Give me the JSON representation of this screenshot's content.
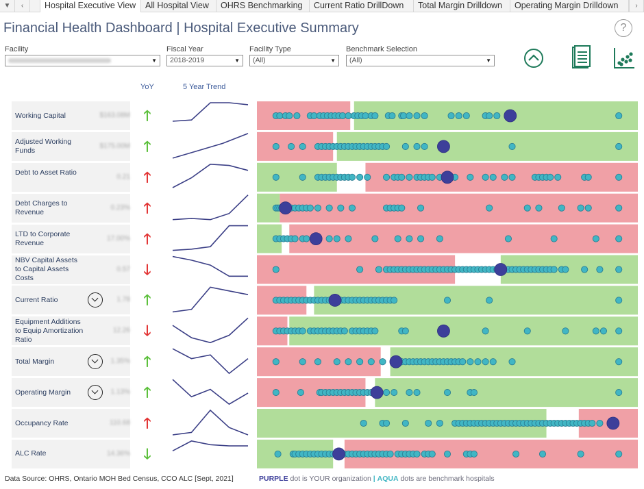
{
  "tabs": {
    "items": [
      {
        "label": "Hospital Executive View",
        "active": true
      },
      {
        "label": "All Hospital View",
        "active": false
      },
      {
        "label": "OHRS Benchmarking",
        "active": false
      },
      {
        "label": "Current Ratio DrillDown",
        "active": false
      },
      {
        "label": "Total Margin Drilldown",
        "active": false
      },
      {
        "label": "Operating Margin Drilldown",
        "active": false
      }
    ]
  },
  "header": {
    "title": "Financial Health Dashboard |  Hospital Executive Summary",
    "help": "?"
  },
  "filters": {
    "facility": {
      "label": "Facility",
      "value": ""
    },
    "fiscal_year": {
      "label": "Fiscal Year",
      "value": "2018-2019"
    },
    "facility_type": {
      "label": "Facility Type",
      "value": "(All)"
    },
    "benchmark": {
      "label": "Benchmark Selection",
      "value": "(All)"
    }
  },
  "icons": {
    "collapse": "chevron-up-circle-icon",
    "report": "report-document-icon",
    "scatter": "scatter-chart-icon"
  },
  "columns": {
    "yoy": "YoY",
    "trend": "5 Year Trend"
  },
  "colors": {
    "red_zone": "#f0a0a6",
    "green_zone": "#b1dd9a",
    "aqua": "#41b6c4",
    "purple": "#3d3f9a",
    "arrow_up": "#5bbf3a",
    "arrow_down_red": "#e23434",
    "trend_line": "#3b3f86"
  },
  "metrics": [
    {
      "label": "Working Capital",
      "value": "$163.08M",
      "yoy": "up",
      "yoy_color": "green",
      "expand": false,
      "trend": [
        0.25,
        0.3,
        1.0,
        1.0,
        0.92
      ],
      "zones": [
        [
          "red",
          0.0,
          0.245
        ],
        [
          "green",
          0.255,
          1.0
        ]
      ],
      "dots": [
        0.05,
        0.06,
        0.075,
        0.085,
        0.105,
        0.14,
        0.15,
        0.165,
        0.175,
        0.185,
        0.195,
        0.205,
        0.215,
        0.225,
        0.24,
        0.255,
        0.265,
        0.275,
        0.285,
        0.3,
        0.31,
        0.345,
        0.355,
        0.38,
        0.385,
        0.4,
        0.42,
        0.44,
        0.51,
        0.53,
        0.55,
        0.6,
        0.61,
        0.63,
        0.95
      ],
      "you": 0.665
    },
    {
      "label": "Adjusted Working Funds",
      "value": "$175.00M",
      "yoy": "up",
      "yoy_color": "green",
      "expand": false,
      "trend": [
        0.0,
        0.3,
        0.6,
        1.0
      ],
      "zones": [
        [
          "red",
          0.0,
          0.2
        ],
        [
          "green",
          0.21,
          1.0
        ]
      ],
      "dots": [
        0.05,
        0.09,
        0.12,
        0.16,
        0.17,
        0.18,
        0.19,
        0.2,
        0.21,
        0.22,
        0.23,
        0.24,
        0.25,
        0.26,
        0.27,
        0.28,
        0.29,
        0.3,
        0.31,
        0.32,
        0.33,
        0.34,
        0.39,
        0.42,
        0.44,
        0.67,
        0.95
      ],
      "you": 0.49
    },
    {
      "label": "Debt to Asset Ratio",
      "value": "0.21",
      "yoy": "up",
      "yoy_color": "red",
      "expand": false,
      "trend": [
        0.05,
        0.45,
        1.0,
        0.95,
        0.75
      ],
      "zones": [
        [
          "green",
          0.0,
          0.21
        ],
        [
          "red",
          0.285,
          1.0
        ]
      ],
      "dots": [
        0.05,
        0.12,
        0.16,
        0.17,
        0.18,
        0.19,
        0.2,
        0.21,
        0.22,
        0.23,
        0.24,
        0.25,
        0.27,
        0.29,
        0.34,
        0.36,
        0.37,
        0.38,
        0.4,
        0.42,
        0.43,
        0.44,
        0.45,
        0.46,
        0.48,
        0.5,
        0.52,
        0.56,
        0.6,
        0.62,
        0.65,
        0.67,
        0.73,
        0.74,
        0.75,
        0.76,
        0.77,
        0.79,
        0.86,
        0.87,
        0.95
      ],
      "you": 0.5
    },
    {
      "label": "Debt Charges to Revenue",
      "value": "0.23%",
      "yoy": "up",
      "yoy_color": "red",
      "expand": false,
      "trend": [
        0.0,
        0.05,
        0.0,
        0.25,
        1.0
      ],
      "zones": [
        [
          "green",
          0.0,
          0.06
        ],
        [
          "red",
          0.06,
          1.0
        ]
      ],
      "dots": [
        0.05,
        0.055,
        0.06,
        0.065,
        0.07,
        0.08,
        0.09,
        0.1,
        0.11,
        0.12,
        0.13,
        0.14,
        0.16,
        0.19,
        0.22,
        0.25,
        0.34,
        0.35,
        0.36,
        0.37,
        0.38,
        0.43,
        0.61,
        0.71,
        0.74,
        0.8,
        0.85,
        0.87,
        0.95
      ],
      "you": 0.075
    },
    {
      "label": "LTD to Corporate Revenue",
      "value": "17.00%",
      "yoy": "up",
      "yoy_color": "red",
      "expand": false,
      "trend": [
        0.0,
        0.05,
        0.15,
        1.0,
        1.0
      ],
      "zones": [
        [
          "green",
          0.0,
          0.065
        ],
        [
          "red",
          0.085,
          1.0
        ]
      ],
      "dots": [
        0.05,
        0.06,
        0.07,
        0.08,
        0.09,
        0.1,
        0.12,
        0.13,
        0.15,
        0.19,
        0.21,
        0.24,
        0.31,
        0.37,
        0.4,
        0.43,
        0.48,
        0.66,
        0.78,
        0.89,
        0.95
      ],
      "you": 0.155
    },
    {
      "label": "NBV Capital Assets to Capital Assets Costs",
      "value": "0.57",
      "yoy": "down",
      "yoy_color": "red",
      "expand": false,
      "trend": [
        1.0,
        0.85,
        0.65,
        0.2,
        0.2
      ],
      "zones": [
        [
          "red",
          0.0,
          0.52
        ],
        [
          "green",
          0.64,
          1.0
        ]
      ],
      "dots": [
        0.05,
        0.27,
        0.32,
        0.34,
        0.35,
        0.36,
        0.37,
        0.38,
        0.39,
        0.4,
        0.41,
        0.42,
        0.43,
        0.44,
        0.45,
        0.46,
        0.47,
        0.48,
        0.49,
        0.5,
        0.51,
        0.52,
        0.53,
        0.54,
        0.55,
        0.56,
        0.57,
        0.58,
        0.59,
        0.6,
        0.61,
        0.62,
        0.63,
        0.66,
        0.67,
        0.68,
        0.69,
        0.7,
        0.71,
        0.72,
        0.73,
        0.74,
        0.75,
        0.76,
        0.77,
        0.78,
        0.8,
        0.81,
        0.86,
        0.9,
        0.95
      ],
      "you": 0.64
    },
    {
      "label": "Current Ratio",
      "value": "1.78",
      "yoy": "up",
      "yoy_color": "green",
      "expand": true,
      "trend": [
        0.0,
        0.1,
        1.0,
        0.85,
        0.7
      ],
      "zones": [
        [
          "red",
          0.0,
          0.13
        ],
        [
          "green",
          0.15,
          1.0
        ]
      ],
      "dots": [
        0.05,
        0.06,
        0.07,
        0.08,
        0.09,
        0.1,
        0.11,
        0.12,
        0.13,
        0.14,
        0.15,
        0.16,
        0.17,
        0.18,
        0.19,
        0.21,
        0.22,
        0.23,
        0.24,
        0.25,
        0.26,
        0.27,
        0.28,
        0.29,
        0.3,
        0.31,
        0.32,
        0.33,
        0.34,
        0.35,
        0.36,
        0.5,
        0.61,
        0.95
      ],
      "you": 0.205
    },
    {
      "label": "Equipment Additions to Equip Amortization Ratio",
      "value": "12.26",
      "yoy": "down",
      "yoy_color": "red",
      "expand": false,
      "trend": [
        0.7,
        0.2,
        0.0,
        0.3,
        1.0
      ],
      "zones": [
        [
          "red",
          0.0,
          0.08
        ],
        [
          "green",
          0.085,
          1.0
        ]
      ],
      "dots": [
        0.05,
        0.06,
        0.07,
        0.08,
        0.09,
        0.1,
        0.11,
        0.12,
        0.14,
        0.15,
        0.16,
        0.17,
        0.18,
        0.19,
        0.2,
        0.21,
        0.22,
        0.23,
        0.25,
        0.26,
        0.27,
        0.28,
        0.29,
        0.3,
        0.31,
        0.38,
        0.39,
        0.6,
        0.71,
        0.81,
        0.89,
        0.91,
        0.95
      ],
      "you": 0.49
    },
    {
      "label": "Total Margin",
      "value": "1.35%",
      "yoy": "up",
      "yoy_color": "green",
      "expand": true,
      "trend": [
        1.0,
        0.6,
        0.75,
        0.0,
        0.6
      ],
      "zones": [
        [
          "red",
          0.0,
          0.325
        ],
        [
          "green",
          0.35,
          1.0
        ]
      ],
      "dots": [
        0.05,
        0.12,
        0.16,
        0.21,
        0.24,
        0.27,
        0.3,
        0.33,
        0.36,
        0.37,
        0.38,
        0.39,
        0.4,
        0.41,
        0.42,
        0.43,
        0.44,
        0.45,
        0.46,
        0.47,
        0.48,
        0.49,
        0.5,
        0.51,
        0.52,
        0.53,
        0.54,
        0.56,
        0.58,
        0.6,
        0.62,
        0.67,
        0.95
      ],
      "you": 0.365
    },
    {
      "label": "Operating Margin",
      "value": "1.13%",
      "yoy": "up",
      "yoy_color": "green",
      "expand": true,
      "trend": [
        1.0,
        0.3,
        0.6,
        0.0,
        0.45
      ],
      "zones": [
        [
          "red",
          0.0,
          0.285
        ],
        [
          "green",
          0.31,
          1.0
        ]
      ],
      "dots": [
        0.05,
        0.115,
        0.165,
        0.17,
        0.18,
        0.19,
        0.2,
        0.21,
        0.22,
        0.23,
        0.24,
        0.25,
        0.26,
        0.27,
        0.28,
        0.29,
        0.3,
        0.31,
        0.32,
        0.34,
        0.36,
        0.4,
        0.42,
        0.5,
        0.56,
        0.57,
        0.95
      ],
      "you": 0.315
    },
    {
      "label": "Occupancy Rate",
      "value": "110.68",
      "yoy": "up",
      "yoy_color": "red",
      "expand": false,
      "trend": [
        0.0,
        0.1,
        1.0,
        0.3,
        0.0
      ],
      "zones": [
        [
          "green",
          0.0,
          0.76
        ],
        [
          "red",
          0.845,
          1.0
        ]
      ],
      "dots": [
        0.28,
        0.33,
        0.34,
        0.39,
        0.45,
        0.48,
        0.52,
        0.53,
        0.54,
        0.55,
        0.56,
        0.57,
        0.58,
        0.59,
        0.6,
        0.61,
        0.62,
        0.63,
        0.64,
        0.65,
        0.66,
        0.67,
        0.68,
        0.69,
        0.7,
        0.71,
        0.72,
        0.73,
        0.74,
        0.75,
        0.76,
        0.77,
        0.78,
        0.79,
        0.8,
        0.81,
        0.82,
        0.83,
        0.84,
        0.85,
        0.86,
        0.87,
        0.88,
        0.9
      ],
      "you": 0.935
    },
    {
      "label": "ALC Rate",
      "value": "14.36%",
      "yoy": "down",
      "yoy_color": "green",
      "expand": false,
      "trend": [
        0.6,
        1.0,
        0.85,
        0.8,
        0.8
      ],
      "zones": [
        [
          "green",
          0.0,
          0.2
        ],
        [
          "red",
          0.23,
          1.0
        ]
      ],
      "dots": [
        0.055,
        0.095,
        0.1,
        0.11,
        0.12,
        0.13,
        0.14,
        0.15,
        0.16,
        0.17,
        0.18,
        0.19,
        0.2,
        0.21,
        0.22,
        0.23,
        0.24,
        0.25,
        0.26,
        0.27,
        0.28,
        0.29,
        0.3,
        0.31,
        0.32,
        0.33,
        0.34,
        0.35,
        0.37,
        0.38,
        0.39,
        0.4,
        0.41,
        0.42,
        0.44,
        0.45,
        0.46,
        0.5,
        0.55,
        0.56,
        0.57,
        0.68,
        0.75,
        0.85,
        0.95
      ],
      "you": 0.215
    }
  ],
  "footer": {
    "source": "Data Source: OHRS, Ontario MOH Bed Census, CCO ALC [Sept, 2021]",
    "purple_word": "PURPLE",
    "purple_rest": "dot is YOUR organization",
    "separator": "|",
    "aqua_word": "AQUA",
    "aqua_rest": "dots are benchmark hospitals"
  }
}
